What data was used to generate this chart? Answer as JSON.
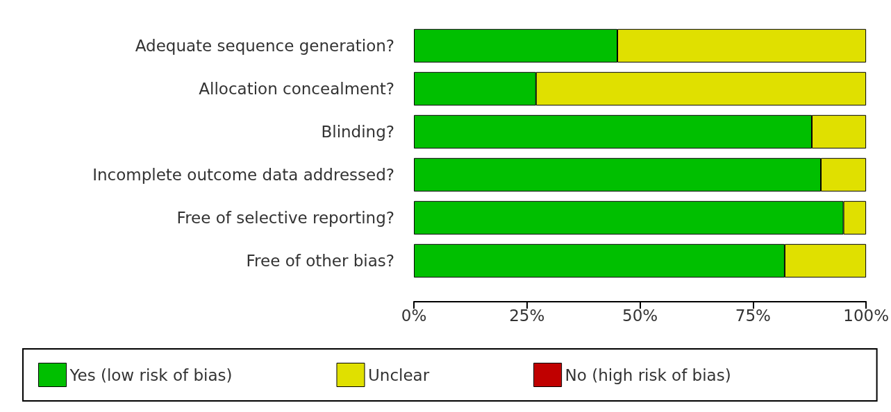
{
  "chart_data": {
    "type": "bar",
    "orientation": "horizontal",
    "stacked": true,
    "categories": [
      "Adequate sequence generation?",
      "Allocation concealment?",
      "Blinding?",
      "Incomplete outcome data addressed?",
      "Free of selective reporting?",
      "Free of other bias?"
    ],
    "series": [
      {
        "name": "Yes (low risk of bias)",
        "color": "#00bf00",
        "values": [
          45,
          27,
          88,
          90,
          95,
          82
        ]
      },
      {
        "name": "Unclear",
        "color": "#e0e000",
        "values": [
          55,
          73,
          12,
          10,
          5,
          18
        ]
      },
      {
        "name": "No (high risk of bias)",
        "color": "#c00000",
        "values": [
          0,
          0,
          0,
          0,
          0,
          0
        ]
      }
    ],
    "xlim": [
      0,
      100
    ],
    "xticks": [
      {
        "value": 0,
        "label": "0%"
      },
      {
        "value": 25,
        "label": "25%"
      },
      {
        "value": 50,
        "label": "50%"
      },
      {
        "value": 75,
        "label": "75%"
      },
      {
        "value": 100,
        "label": "100%"
      }
    ],
    "grid": false,
    "legend": "bottom"
  }
}
